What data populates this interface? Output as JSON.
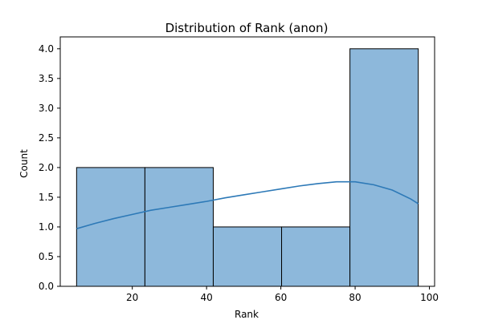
{
  "chart_data": {
    "type": "bar",
    "title": "Distribution of Rank (anon)",
    "xlabel": "Rank",
    "ylabel": "Count",
    "bins": [
      {
        "start": 5.0,
        "end": 23.4,
        "count": 2
      },
      {
        "start": 23.4,
        "end": 41.8,
        "count": 2
      },
      {
        "start": 41.8,
        "end": 60.2,
        "count": 1
      },
      {
        "start": 60.2,
        "end": 78.6,
        "count": 1
      },
      {
        "start": 78.6,
        "end": 97.0,
        "count": 4
      }
    ],
    "kde": {
      "x": [
        5,
        10,
        15,
        20,
        25,
        30,
        35,
        40,
        45,
        50,
        55,
        60,
        65,
        70,
        75,
        80,
        85,
        90,
        95,
        97
      ],
      "y": [
        0.97,
        1.06,
        1.14,
        1.21,
        1.28,
        1.33,
        1.38,
        1.43,
        1.49,
        1.54,
        1.59,
        1.64,
        1.69,
        1.73,
        1.76,
        1.76,
        1.71,
        1.62,
        1.47,
        1.39
      ]
    },
    "xlim": [
      0,
      100
    ],
    "ylim": [
      0,
      4.2
    ],
    "xticks": [
      "20",
      "40",
      "60",
      "80",
      "100"
    ],
    "xtick_values": [
      20,
      40,
      60,
      80,
      100
    ],
    "yticks": [
      "0.0",
      "0.5",
      "1.0",
      "1.5",
      "2.0",
      "2.5",
      "3.0",
      "3.5",
      "4.0"
    ],
    "ytick_values": [
      0,
      0.5,
      1.0,
      1.5,
      2.0,
      2.5,
      3.0,
      3.5,
      4.0
    ],
    "grid": false,
    "colors": {
      "bar_fill": "#8db8db",
      "bar_edge": "#000000",
      "kde_line": "#2d79b7",
      "axis": "#000000"
    }
  }
}
